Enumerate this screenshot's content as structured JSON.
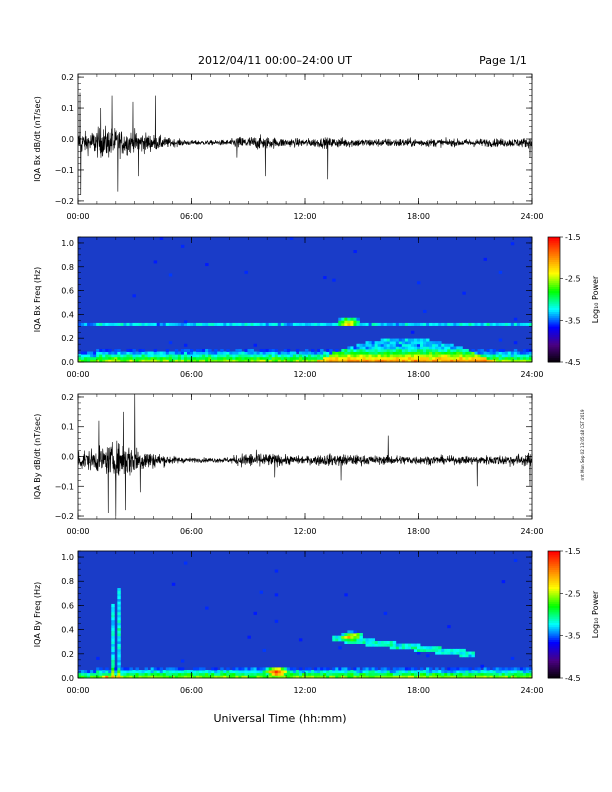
{
  "header": {
    "title": "2012/04/11  00:00–24:00 UT",
    "page": "Page 1/1"
  },
  "x_axis_title": "Universal Time (hh:mm)",
  "side_note": "rrrt Mon Sep 02 13:05:48 CST 2019",
  "colors": {
    "line": "#000000",
    "background": "#ffffff",
    "spectrogram_base": "#1a3cc8",
    "colormap": [
      "#000000",
      "#4b0082",
      "#0000ff",
      "#00ffff",
      "#00ff00",
      "#ffff00",
      "#ff8000",
      "#ff0000"
    ]
  },
  "colorbar": {
    "ticks": [
      "-1.5",
      "-2.5",
      "-3.5",
      "-4.5"
    ],
    "label": "Log₁₀ Power"
  },
  "chart_data": [
    {
      "type": "line",
      "ylabel": "IQA Bx dB/dt (nT/sec)",
      "x_ticks": [
        "00:00",
        "06:00",
        "12:00",
        "18:00",
        "24:00"
      ],
      "y_ticks": [
        "0.2",
        "0.1",
        "0.0",
        "−0.1",
        "−0.2"
      ],
      "xlim": [
        0,
        24
      ],
      "ylim": [
        -0.21,
        0.21
      ],
      "grid": false,
      "envelope_hours": [
        0,
        0.5,
        1,
        1.5,
        2,
        2.5,
        3,
        3.5,
        4,
        5,
        6,
        7,
        8,
        8.5,
        9,
        9.5,
        10,
        10.5,
        11,
        12,
        13,
        14,
        15,
        16,
        17,
        18,
        19,
        20,
        21,
        22,
        23,
        24
      ],
      "envelope_amplitude": [
        0.06,
        0.05,
        0.07,
        0.08,
        0.07,
        0.06,
        0.06,
        0.05,
        0.04,
        0.02,
        0.012,
        0.012,
        0.015,
        0.03,
        0.03,
        0.035,
        0.03,
        0.025,
        0.022,
        0.02,
        0.025,
        0.025,
        0.02,
        0.02,
        0.022,
        0.02,
        0.02,
        0.018,
        0.02,
        0.02,
        0.022,
        0.025
      ],
      "spikes": [
        [
          0.1,
          0.15
        ],
        [
          0.15,
          -0.18
        ],
        [
          1.2,
          0.1
        ],
        [
          1.8,
          0.14
        ],
        [
          2.1,
          -0.17
        ],
        [
          2.9,
          0.12
        ],
        [
          3.2,
          -0.12
        ],
        [
          4.1,
          0.14
        ],
        [
          8.4,
          -0.06
        ],
        [
          9.9,
          -0.12
        ],
        [
          13.2,
          -0.13
        ],
        [
          23.9,
          -0.06
        ]
      ]
    },
    {
      "type": "heatmap",
      "ylabel": "IQA Bx Freq (Hz)",
      "x_ticks": [
        "00:00",
        "06:00",
        "12:00",
        "18:00",
        "24:00"
      ],
      "y_ticks": [
        "1.0",
        "0.8",
        "0.6",
        "0.4",
        "0.2",
        "0.0"
      ],
      "xlim": [
        0,
        24
      ],
      "ylim": [
        0,
        1.05
      ],
      "zlim": [
        -4.5,
        -1.5
      ],
      "zlabel": "Log₁₀ Power",
      "features": [
        {
          "kind": "low_freq_band",
          "t_from": 0,
          "t_to": 24,
          "f_to": 0.12
        },
        {
          "kind": "hump",
          "t_from": 12.5,
          "t_to": 22,
          "f_to": 0.2
        },
        {
          "kind": "blob",
          "t": 14.3,
          "f": 0.34
        },
        {
          "kind": "line",
          "f": 0.31,
          "t_from": 0,
          "t_to": 24
        }
      ]
    },
    {
      "type": "line",
      "ylabel": "IQA By dB/dt (nT/sec)",
      "x_ticks": [
        "00:00",
        "06:00",
        "12:00",
        "18:00",
        "24:00"
      ],
      "y_ticks": [
        "0.2",
        "0.1",
        "0.0",
        "−0.1",
        "−0.2"
      ],
      "xlim": [
        0,
        24
      ],
      "ylim": [
        -0.21,
        0.21
      ],
      "grid": false,
      "envelope_hours": [
        0,
        0.5,
        1,
        1.5,
        2,
        2.5,
        3,
        3.5,
        4,
        5,
        6,
        7,
        8,
        8.5,
        9,
        9.5,
        10,
        10.5,
        11,
        12,
        13,
        14,
        15,
        16,
        17,
        18,
        19,
        20,
        21,
        22,
        23,
        24
      ],
      "envelope_amplitude": [
        0.06,
        0.05,
        0.06,
        0.07,
        0.09,
        0.09,
        0.08,
        0.06,
        0.04,
        0.02,
        0.012,
        0.012,
        0.015,
        0.03,
        0.04,
        0.04,
        0.035,
        0.03,
        0.025,
        0.02,
        0.03,
        0.03,
        0.025,
        0.022,
        0.025,
        0.022,
        0.022,
        0.02,
        0.022,
        0.025,
        0.03,
        0.035
      ],
      "spikes": [
        [
          1.6,
          -0.19
        ],
        [
          2.0,
          -0.2
        ],
        [
          2.4,
          0.15
        ],
        [
          2.5,
          -0.18
        ],
        [
          3.0,
          0.21
        ],
        [
          3.3,
          -0.12
        ],
        [
          1.1,
          0.12
        ],
        [
          10.4,
          -0.07
        ],
        [
          13.9,
          -0.08
        ],
        [
          16.4,
          0.07
        ],
        [
          21.1,
          -0.1
        ],
        [
          23.9,
          0.07
        ],
        [
          23.9,
          -0.1
        ]
      ]
    },
    {
      "type": "heatmap",
      "ylabel": "IQA By Freq (Hz)",
      "x_ticks": [
        "00:00",
        "06:00",
        "12:00",
        "18:00",
        "24:00"
      ],
      "y_ticks": [
        "1.0",
        "0.8",
        "0.6",
        "0.4",
        "0.2",
        "0.0"
      ],
      "xlim": [
        0,
        24
      ],
      "ylim": [
        0,
        1.05
      ],
      "zlim": [
        -4.5,
        -1.5
      ],
      "zlabel": "Log₁₀ Power",
      "features": [
        {
          "kind": "low_freq_band",
          "t_from": 0,
          "t_to": 24,
          "f_to": 0.1
        },
        {
          "kind": "streaks",
          "t_from": 1,
          "t_to": 4.5,
          "f_to": 0.95
        },
        {
          "kind": "blob",
          "t": 14.5,
          "f": 0.35
        },
        {
          "kind": "tail",
          "t_from": 13.5,
          "t_to": 21,
          "f": 0.33
        },
        {
          "kind": "blob",
          "t": 10.5,
          "f": 0.06
        }
      ]
    }
  ]
}
